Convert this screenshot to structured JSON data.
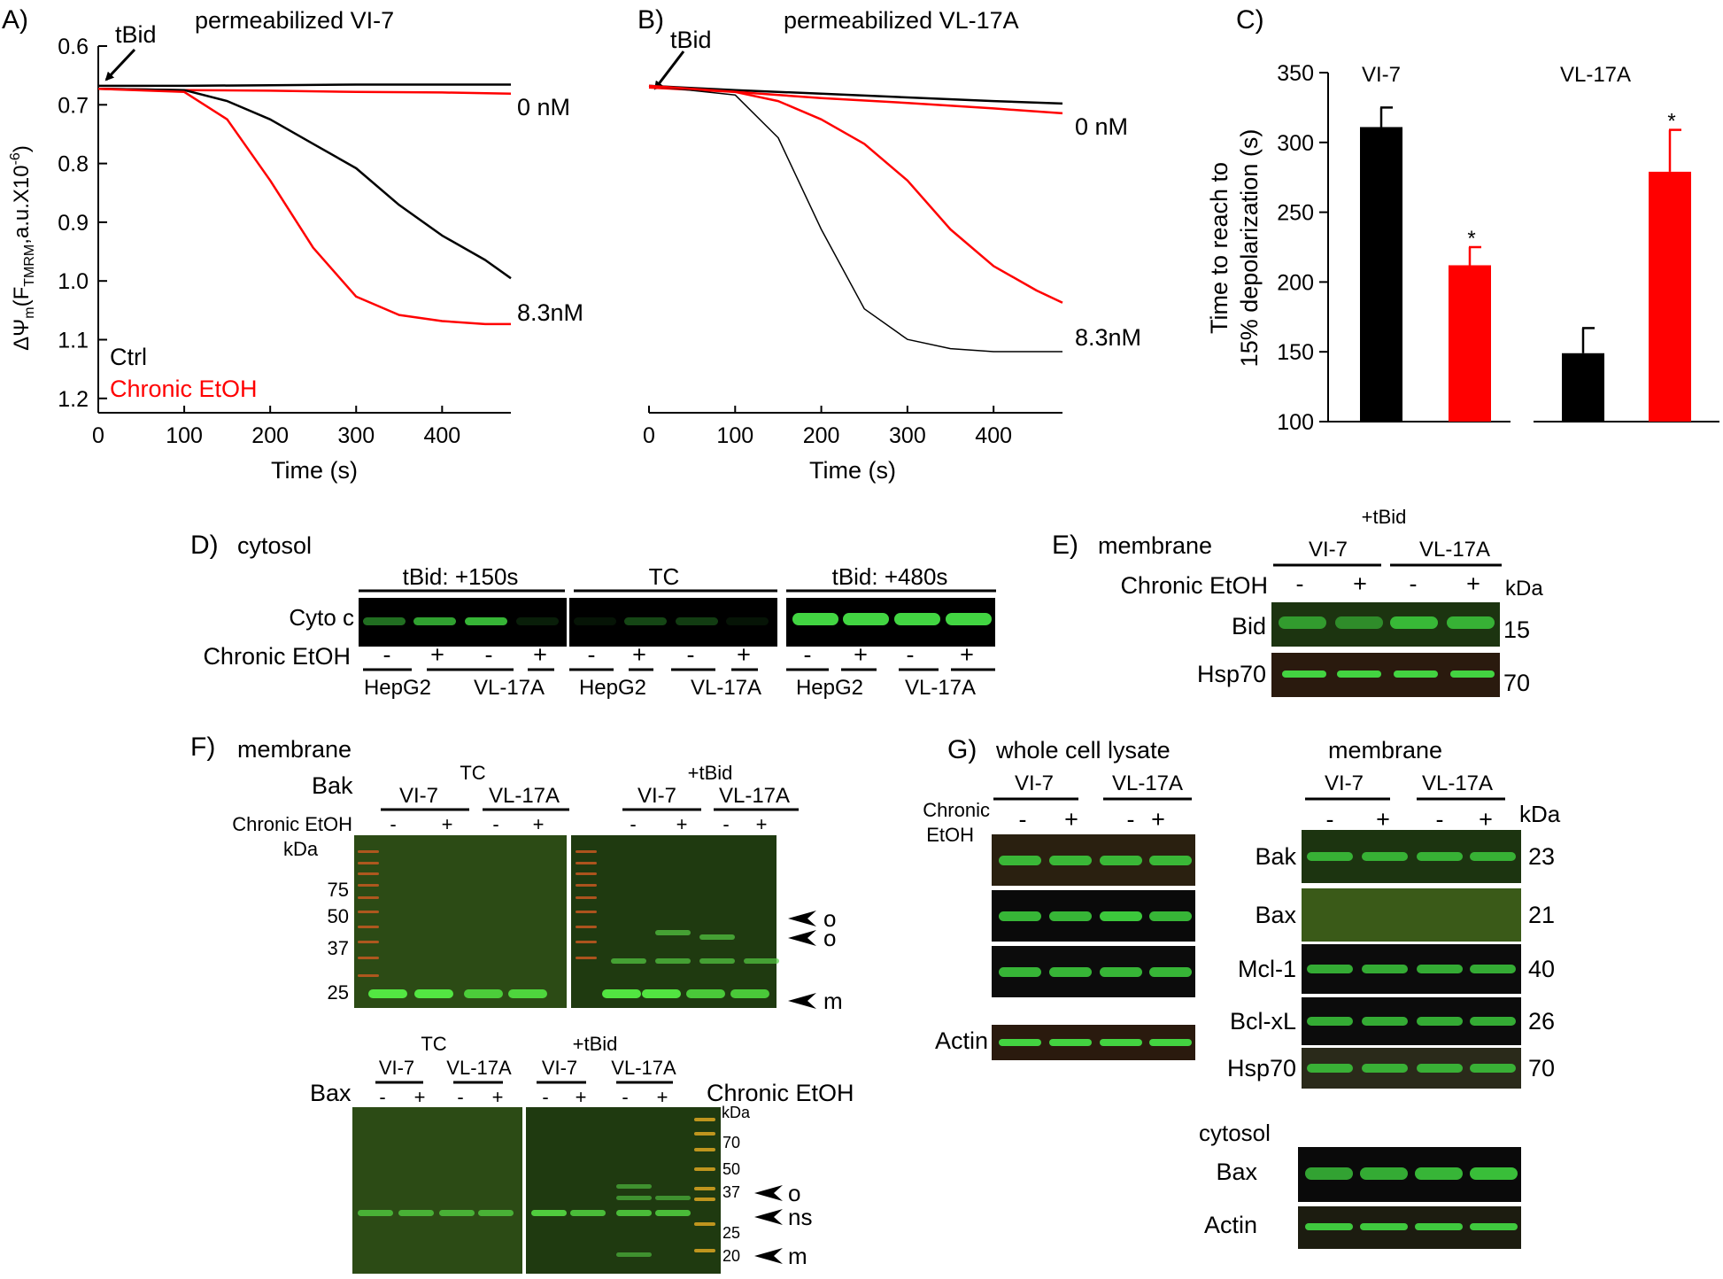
{
  "panel_a": {
    "letter": "A)",
    "title": "permeabilized VI-7",
    "arrow_label": "tBid",
    "ylabel": "ΔΨm(FTMRM,a.u.X10-6)",
    "ylabel_parts": {
      "main": "ΔΨ",
      "sub_m": "m",
      "open": "(F",
      "sub_t": "TMRM",
      "rest": ",a.u.X10",
      "sup": "-6",
      "close": ")"
    },
    "yticks": [
      "0.6",
      "0.7",
      "0.8",
      "0.9",
      "1.0",
      "1.1",
      "1.2"
    ],
    "xticks": [
      "0",
      "100",
      "200",
      "300",
      "400"
    ],
    "xlabel": "Time (s)",
    "label_0": "0 nM",
    "label_83": "8.3nM",
    "legend_ctrl": "Ctrl",
    "legend_etoh": "Chronic EtOH",
    "color_ctrl": "#000000",
    "color_etoh": "#ff0000"
  },
  "panel_b": {
    "letter": "B)",
    "title": "permeabilized VL-17A",
    "arrow_label": "tBid",
    "xticks": [
      "0",
      "100",
      "200",
      "300",
      "400"
    ],
    "xlabel": "Time (s)",
    "label_0": "0 nM",
    "label_83": "8.3nM"
  },
  "chart_data": [
    {
      "type": "line",
      "title": "permeabilized VI-7",
      "xlabel": "Time (s)",
      "ylabel": "ΔΨm(FTMRM,a.u.X10-6)",
      "xlim": [
        0,
        480
      ],
      "ylim": [
        0.6,
        1.2
      ],
      "y_inverted": true,
      "series": [
        {
          "name": "Ctrl 0 nM",
          "x": [
            0,
            100,
            200,
            300,
            400,
            480
          ],
          "y": [
            0.665,
            0.665,
            0.664,
            0.663,
            0.663,
            0.663
          ]
        },
        {
          "name": "Chronic EtOH 0 nM",
          "x": [
            0,
            100,
            200,
            300,
            400,
            480
          ],
          "y": [
            0.67,
            0.672,
            0.673,
            0.675,
            0.676,
            0.678
          ]
        },
        {
          "name": "Ctrl 8.3nM",
          "x": [
            0,
            100,
            150,
            200,
            250,
            300,
            350,
            400,
            450,
            480
          ],
          "y": [
            0.67,
            0.672,
            0.69,
            0.72,
            0.76,
            0.8,
            0.86,
            0.91,
            0.95,
            0.98
          ]
        },
        {
          "name": "Chronic EtOH 8.3nM",
          "x": [
            0,
            100,
            150,
            200,
            250,
            300,
            350,
            400,
            450,
            480
          ],
          "y": [
            0.67,
            0.675,
            0.72,
            0.82,
            0.93,
            1.01,
            1.04,
            1.05,
            1.055,
            1.055
          ]
        }
      ]
    },
    {
      "type": "line",
      "title": "permeabilized VL-17A",
      "xlabel": "Time (s)",
      "xlim": [
        0,
        480
      ],
      "ylim": [
        0.6,
        1.2
      ],
      "y_inverted": true,
      "series": [
        {
          "name": "Ctrl 0 nM",
          "x": [
            0,
            100,
            200,
            300,
            400,
            480
          ],
          "y": [
            0.665,
            0.672,
            0.678,
            0.684,
            0.69,
            0.694
          ]
        },
        {
          "name": "Chronic EtOH 0 nM",
          "x": [
            0,
            100,
            200,
            300,
            400,
            480
          ],
          "y": [
            0.668,
            0.675,
            0.685,
            0.693,
            0.702,
            0.71
          ]
        },
        {
          "name": "Ctrl 8.3nM",
          "x": [
            0,
            100,
            150,
            200,
            250,
            300,
            350,
            400,
            450,
            480
          ],
          "y": [
            0.665,
            0.68,
            0.75,
            0.9,
            1.03,
            1.08,
            1.095,
            1.1,
            1.1,
            1.1
          ]
        },
        {
          "name": "Chronic EtOH 8.3nM",
          "x": [
            0,
            100,
            150,
            200,
            250,
            300,
            350,
            400,
            450,
            480
          ],
          "y": [
            0.665,
            0.675,
            0.69,
            0.72,
            0.76,
            0.82,
            0.9,
            0.96,
            1.0,
            1.02
          ]
        }
      ]
    },
    {
      "type": "bar",
      "title": "",
      "ylabel": "Time to reach to 15% depolarization (s)",
      "ylim": [
        100,
        350
      ],
      "yticks": [
        100,
        150,
        200,
        250,
        300,
        350
      ],
      "categories": [
        "VI-7 Ctrl",
        "VI-7 Chronic EtOH",
        "VL-17A Ctrl",
        "VL-17A Chronic EtOH"
      ],
      "groups": [
        "VI-7",
        "VL-17A"
      ],
      "values": [
        311,
        212,
        149,
        279
      ],
      "errors": [
        14,
        13,
        18,
        30
      ],
      "significance": [
        "",
        "*",
        "",
        "*"
      ],
      "colors": [
        "#000000",
        "#ff0000",
        "#000000",
        "#ff0000"
      ]
    }
  ],
  "panel_c": {
    "letter": "C)",
    "group1": "VI-7",
    "group2": "VL-17A",
    "ylabel_line1": "Time to reach to",
    "ylabel_line2": "15% depolarization (s)",
    "yticks": [
      "100",
      "150",
      "200",
      "250",
      "300",
      "350"
    ],
    "star": "*"
  },
  "panel_d": {
    "letter": "D)",
    "title": "cytosol",
    "group1": "tBid: +150s",
    "group2": "TC",
    "group3": "tBid: +480s",
    "row_label": "Cyto c",
    "etoh_label": "Chronic EtOH",
    "minus": "-",
    "plus": "+",
    "cell1": "HepG2",
    "cell2": "VL-17A"
  },
  "panel_e": {
    "letter": "E)",
    "title": "membrane",
    "top": "+tBid",
    "cell1": "VI-7",
    "cell2": "VL-17A",
    "etoh_label": "Chronic EtOH",
    "kda": "kDa",
    "band1": "Bid",
    "band1_kda": "15",
    "band2": "Hsp70",
    "band2_kda": "70"
  },
  "panel_f": {
    "letter": "F)",
    "title": "membrane",
    "bak": "Bak",
    "bax": "Bax",
    "tc": "TC",
    "tbid": "+tBid",
    "cell1": "VI-7",
    "cell2": "VL-17A",
    "etoh_label": "Chronic EtOH",
    "kda": "kDa",
    "markers_top": [
      "75",
      "50",
      "37",
      "25"
    ],
    "markers_bottom": [
      "70",
      "50",
      "37",
      "25",
      "20"
    ],
    "arrow_o": "o",
    "arrow_m": "m",
    "arrow_ns": "ns"
  },
  "panel_g": {
    "letter": "G)",
    "title_left": "whole cell lysate",
    "title_right": "membrane",
    "cell1": "VI-7",
    "cell2": "VL-17A",
    "etoh_line1": "Chronic",
    "etoh_line2": "EtOH",
    "kda": "kDa",
    "actin": "Actin",
    "bands": [
      {
        "name": "Bak",
        "kda": "23"
      },
      {
        "name": "Bax",
        "kda": "21"
      },
      {
        "name": "Mcl-1",
        "kda": "40"
      },
      {
        "name": "Bcl-xL",
        "kda": "26"
      },
      {
        "name": "Hsp70",
        "kda": "70"
      }
    ],
    "cytosol": "cytosol",
    "cyto_bax": "Bax",
    "cyto_actin": "Actin"
  }
}
